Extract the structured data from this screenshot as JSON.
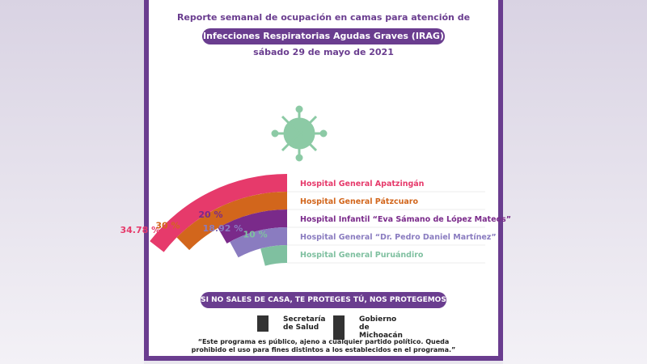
{
  "header": {
    "title": "Reporte semanal de ocupación en camas para atención de",
    "subtitle": "Infecciones Respiratorias Agudas Graves (IRAG)",
    "date": "sábado 29 de mayo de 2021"
  },
  "chart_data": {
    "type": "radial_bar",
    "categories": [
      "Hospital General Apatzingán",
      "Hospital General Pátzcuaro",
      "Hospital Infantil “Eva Sámano de López Mateos”",
      "Hospital General “Dr. Pedro Daniel Martínez”",
      "Hospital General Puruándiro"
    ],
    "values": [
      34.78,
      30,
      20,
      18.92,
      10
    ],
    "value_labels": [
      "34.78 %",
      "30 %",
      "20 %",
      "18.92 %",
      "10 %"
    ],
    "colors": [
      "#e63a6b",
      "#d2661c",
      "#7a2a8a",
      "#8a7cc0",
      "#7fc0a0"
    ]
  },
  "footer": {
    "slogan": "SI NO SALES DE CASA, TE PROTEGES TÚ, NOS PROTEGEMOS TODOS.",
    "logos": [
      "Secretaría de Salud",
      "Gobierno de Michoacán"
    ],
    "disclaimer": "“Este programa es público, ajeno a cualquier partido político. Queda prohibido el uso para fines distintos a los establecidos en el programa.”"
  }
}
